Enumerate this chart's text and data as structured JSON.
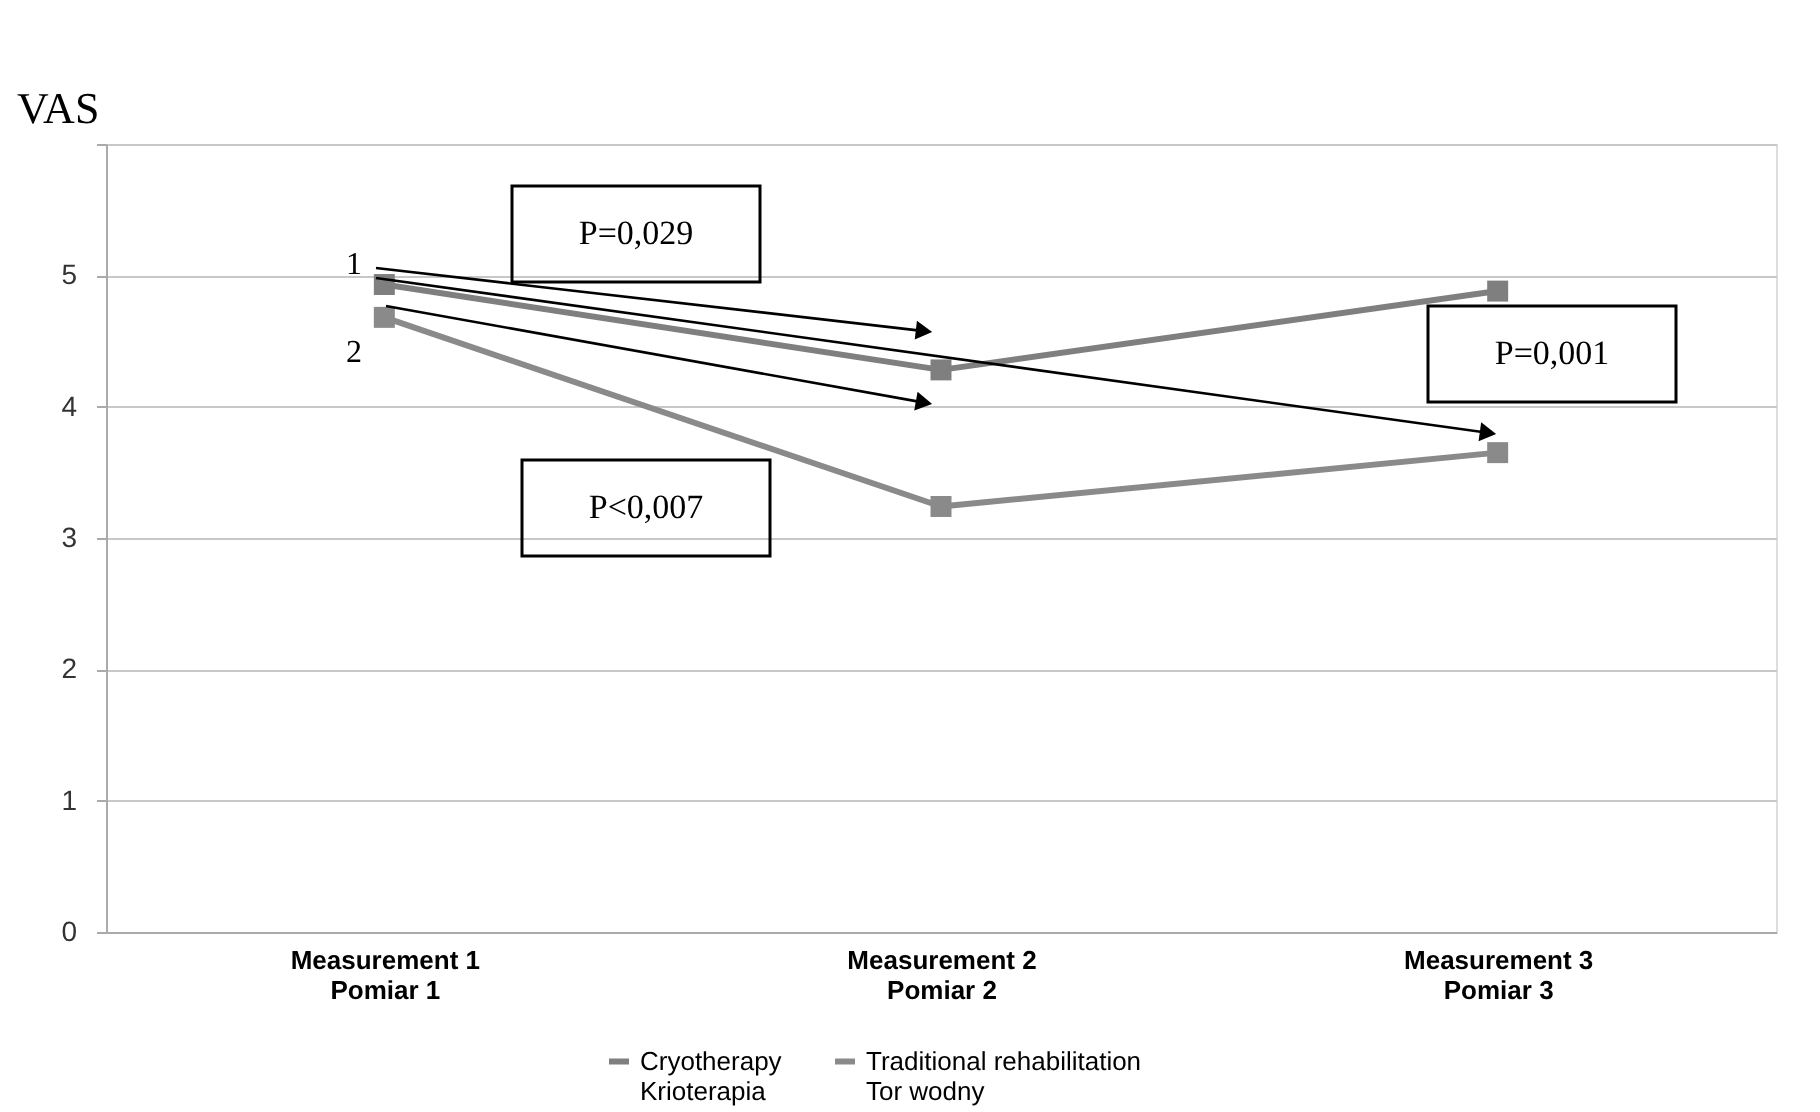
{
  "chart_data": {
    "type": "line",
    "ylabel": "VAS",
    "categories": [
      "Measurement 1\nPomiar 1",
      "Measurement 2\nPomiar 2",
      "Measurement 3\nPomiar 3"
    ],
    "series": [
      {
        "name": "Cryotherapy\nKrioterapia",
        "color": "#7f7f7f",
        "values": [
          4.93,
          4.28,
          4.88
        ]
      },
      {
        "name": "Traditional rehabilitation\nTor wodny",
        "color": "#8a8a8a",
        "values": [
          4.68,
          3.24,
          3.65
        ]
      }
    ],
    "ylim": [
      0,
      6
    ],
    "yticks": [
      0,
      1,
      2,
      3,
      4,
      5,
      {
        "value": 6,
        "label": null
      }
    ],
    "grid": "y",
    "marker": "square",
    "line_style": "solid",
    "legend": "bottom",
    "annotations": [
      "P=0,029",
      "P<0,007",
      "P=0,001",
      "1",
      "2"
    ]
  }
}
